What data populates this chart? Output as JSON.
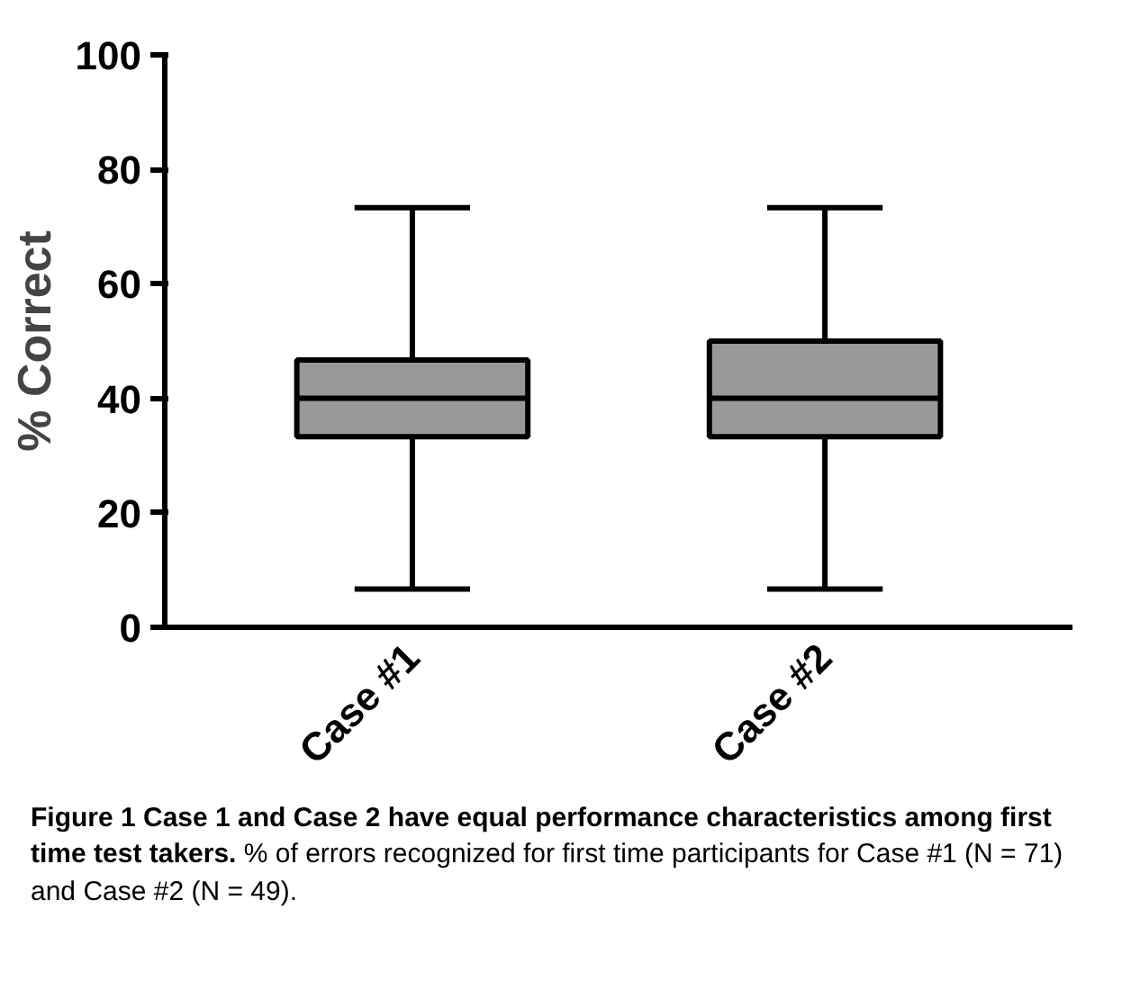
{
  "chart_data": {
    "type": "box",
    "ylabel": "% Correct",
    "categories": [
      "Case #1",
      "Case #2"
    ],
    "color": "#999999",
    "boxes": [
      {
        "low": 6.7,
        "q1": 33.3,
        "median": 40,
        "q3": 46.7,
        "high": 73.3
      },
      {
        "low": 6.7,
        "q1": 33.3,
        "median": 40,
        "q3": 50,
        "high": 73.3
      }
    ],
    "ylim": [
      0,
      100
    ],
    "yticks": [
      0,
      20,
      40,
      60,
      80,
      100
    ],
    "grid": false,
    "annotations": [
      "Figure 1 Case 1 and Case 2 have equal performance characteristics among first time test takers.",
      "% of errors recognized for first time participants for Case #1 (N = 71) and Case #2 (N = 49)."
    ]
  }
}
